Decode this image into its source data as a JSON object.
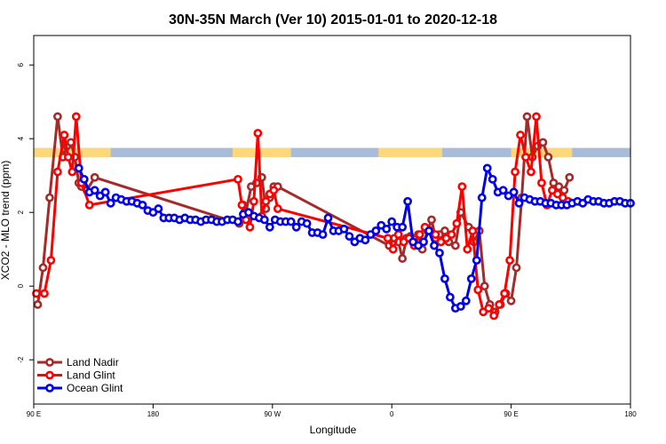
{
  "chart_data": {
    "type": "line",
    "title": "30N-35N March (Ver 10)   2015-01-01 to 2020-12-18",
    "xlabel": "Longitude",
    "ylabel": "XCO2 - MLO trend (ppm)",
    "xlim": [
      0,
      450
    ],
    "ylim": [
      -3.2,
      6.8
    ],
    "x_ticks": [
      {
        "value": 0,
        "label": "90 E"
      },
      {
        "value": 90,
        "label": "180"
      },
      {
        "value": 180,
        "label": "90 W"
      },
      {
        "value": 270,
        "label": "0"
      },
      {
        "value": 360,
        "label": "90 E"
      },
      {
        "value": 450,
        "label": "180"
      }
    ],
    "y_ticks": [
      {
        "value": -2,
        "label": "-2"
      },
      {
        "value": 0,
        "label": "0"
      },
      {
        "value": 2,
        "label": "2"
      },
      {
        "value": 4,
        "label": "4"
      },
      {
        "value": 6,
        "label": "6"
      }
    ],
    "land_ocean_band": {
      "y_range": [
        3.5,
        3.75
      ],
      "ocean_color": "#a8bcd8",
      "land_color": "#fdd87a",
      "land_segments": [
        [
          0,
          58
        ],
        [
          150,
          194
        ],
        [
          260,
          308
        ],
        [
          360,
          406
        ]
      ]
    },
    "legend": {
      "placement": "bottom-left"
    },
    "series": [
      {
        "name": "Land Nadir",
        "color": "#a52a2a",
        "x": [
          3,
          7,
          12,
          18,
          22,
          25,
          28,
          31,
          34,
          36,
          40,
          46,
          155,
          158,
          160,
          164,
          168,
          172,
          175,
          178,
          181,
          184,
          268,
          272,
          275,
          278,
          281,
          284,
          287,
          290,
          293,
          297,
          300,
          303,
          306,
          310,
          313,
          318,
          322,
          328,
          332,
          336,
          340,
          344,
          348,
          352,
          356,
          360,
          364,
          368,
          372,
          376,
          380,
          384,
          388,
          392,
          396,
          400,
          404
        ],
        "values": [
          -0.5,
          0.5,
          2.4,
          4.6,
          3.5,
          3.8,
          3.9,
          3.5,
          2.8,
          2.7,
          2.6,
          2.95,
          1.7,
          2.2,
          2.0,
          2.7,
          2.8,
          2.95,
          2.1,
          2.4,
          2.7,
          2.7,
          1.1,
          1.3,
          1.2,
          0.75,
          1.3,
          1.35,
          1.1,
          1.4,
          1.0,
          1.5,
          1.8,
          1.3,
          1.4,
          1.5,
          1.2,
          1.1,
          2.0,
          1.6,
          1.2,
          1.5,
          0.0,
          -0.5,
          -0.7,
          -0.5,
          -0.2,
          -0.4,
          0.5,
          2.4,
          4.6,
          3.5,
          3.8,
          3.9,
          3.5,
          2.8,
          2.7,
          2.6,
          2.95
        ]
      },
      {
        "name": "Land Glint",
        "color": "#ff0000",
        "x": [
          2,
          8,
          13,
          18,
          23,
          26,
          29,
          32,
          36,
          42,
          154,
          157,
          160,
          163,
          166,
          169,
          172,
          175,
          178,
          181,
          184,
          267,
          271,
          275,
          279,
          283,
          287,
          291,
          295,
          299,
          303,
          307,
          311,
          315,
          319,
          323,
          327,
          331,
          335,
          339,
          343,
          347,
          351,
          355,
          359,
          363,
          367,
          371,
          375,
          379,
          383,
          387,
          391,
          395,
          399,
          403
        ],
        "values": [
          -0.2,
          -0.2,
          0.7,
          3.1,
          4.1,
          3.5,
          3.1,
          4.6,
          2.8,
          2.2,
          2.9,
          2.2,
          1.8,
          1.6,
          2.3,
          4.15,
          1.9,
          2.3,
          2.5,
          2.6,
          2.1,
          1.3,
          1.0,
          1.4,
          1.2,
          1.3,
          1.1,
          1.4,
          1.6,
          1.5,
          1.4,
          1.2,
          1.3,
          1.4,
          1.7,
          2.7,
          1.0,
          1.5,
          -0.1,
          -0.7,
          -0.6,
          -0.8,
          -0.5,
          -0.2,
          0.7,
          3.1,
          4.1,
          3.5,
          3.1,
          4.6,
          2.8,
          2.2,
          2.6,
          2.5,
          2.4,
          2.3
        ]
      },
      {
        "name": "Ocean Glint",
        "color": "#0000ee",
        "x": [
          34,
          38,
          42,
          46,
          50,
          54,
          58,
          62,
          66,
          70,
          74,
          78,
          82,
          86,
          90,
          94,
          98,
          102,
          106,
          110,
          114,
          118,
          122,
          126,
          130,
          134,
          138,
          142,
          146,
          150,
          154,
          158,
          162,
          166,
          170,
          174,
          178,
          182,
          186,
          190,
          194,
          198,
          202,
          206,
          210,
          214,
          218,
          222,
          226,
          230,
          234,
          238,
          242,
          246,
          250,
          254,
          258,
          262,
          266,
          270,
          274,
          278,
          282,
          286,
          290,
          294,
          298,
          302,
          306,
          310,
          314,
          318,
          322,
          326,
          330,
          334,
          338,
          342,
          346,
          350,
          354,
          358,
          362,
          366,
          370,
          374,
          378,
          382,
          386,
          390,
          394,
          398,
          402,
          406,
          410,
          414,
          418,
          422,
          426,
          430,
          434,
          438,
          442,
          446,
          450
        ],
        "values": [
          3.2,
          2.9,
          2.55,
          2.6,
          2.45,
          2.55,
          2.25,
          2.4,
          2.35,
          2.3,
          2.3,
          2.25,
          2.2,
          2.05,
          2.0,
          2.1,
          1.85,
          1.85,
          1.85,
          1.8,
          1.85,
          1.8,
          1.8,
          1.75,
          1.8,
          1.8,
          1.75,
          1.75,
          1.8,
          1.8,
          1.75,
          1.95,
          2.0,
          1.9,
          1.85,
          1.8,
          1.6,
          1.8,
          1.75,
          1.75,
          1.75,
          1.6,
          1.75,
          1.7,
          1.45,
          1.45,
          1.4,
          1.85,
          1.5,
          1.5,
          1.55,
          1.35,
          1.2,
          1.3,
          1.25,
          1.4,
          1.5,
          1.65,
          1.55,
          1.75,
          1.6,
          1.6,
          2.3,
          1.2,
          1.1,
          1.2,
          1.5,
          1.1,
          0.9,
          0.2,
          -0.3,
          -0.6,
          -0.55,
          -0.4,
          0.2,
          0.7,
          2.4,
          3.2,
          2.9,
          2.55,
          2.6,
          2.45,
          2.55,
          2.25,
          2.4,
          2.35,
          2.3,
          2.3,
          2.25,
          2.25,
          2.2,
          2.2,
          2.2,
          2.25,
          2.3,
          2.25,
          2.35,
          2.3,
          2.3,
          2.25,
          2.25,
          2.3,
          2.3,
          2.25,
          2.25
        ]
      }
    ]
  }
}
